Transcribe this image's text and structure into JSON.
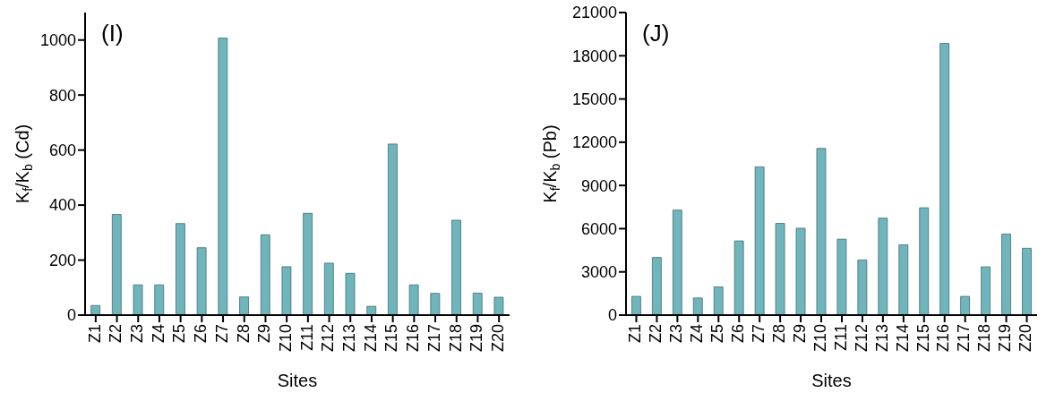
{
  "chart_data": [
    {
      "type": "bar",
      "title": "(I)",
      "xlabel": "Sites",
      "ylabel": "K$_{f}$/K$_{b}$ (Cd)",
      "categories": [
        "Z1",
        "Z2",
        "Z3",
        "Z4",
        "Z5",
        "Z6",
        "Z7",
        "Z8",
        "Z9",
        "Z10",
        "Z11",
        "Z12",
        "Z13",
        "Z14",
        "Z15",
        "Z16",
        "Z17",
        "Z18",
        "Z19",
        "Z20"
      ],
      "values": [
        35,
        366,
        110,
        110,
        333,
        245,
        1007,
        66,
        292,
        176,
        370,
        189,
        152,
        32,
        622,
        110,
        79,
        345,
        80,
        65
      ],
      "color": "#70b4bc",
      "ylim": [
        0,
        1100
      ],
      "yticks": [
        0,
        200,
        400,
        600,
        800,
        1000
      ]
    },
    {
      "type": "bar",
      "title": "(J)",
      "xlabel": "Sites",
      "ylabel": "K$_{f}$/K$_{b}$ (Pb)",
      "categories": [
        "Z1",
        "Z2",
        "Z3",
        "Z4",
        "Z5",
        "Z6",
        "Z7",
        "Z8",
        "Z9",
        "Z10",
        "Z11",
        "Z12",
        "Z13",
        "Z14",
        "Z15",
        "Z16",
        "Z17",
        "Z18",
        "Z19",
        "Z20"
      ],
      "values": [
        1300,
        4000,
        7290,
        1190,
        1960,
        5150,
        10290,
        6370,
        6030,
        11570,
        5270,
        3830,
        6730,
        4880,
        7450,
        18860,
        1300,
        3350,
        5630,
        4640
      ],
      "color": "#70b4bc",
      "ylim": [
        0,
        21000
      ],
      "yticks": [
        0,
        3000,
        6000,
        9000,
        12000,
        15000,
        18000,
        21000
      ]
    }
  ]
}
